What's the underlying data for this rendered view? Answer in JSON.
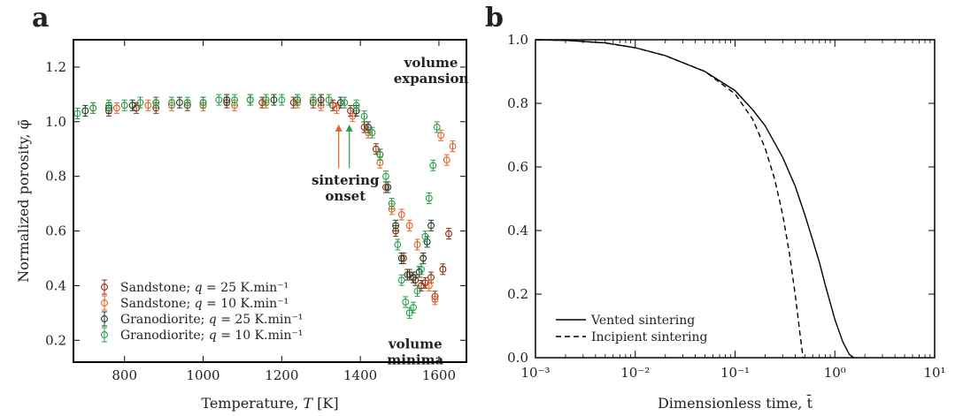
{
  "figure": {
    "panel_a_letter": "a",
    "panel_b_letter": "b"
  },
  "colors": {
    "sandstone_25": "#8b2c12",
    "sandstone_10": "#e0642c",
    "granodiorite_25": "#1f3f25",
    "granodiorite_10": "#2a9d4a",
    "arrow_orange": "#e0642c",
    "arrow_green": "#2a9d4a"
  },
  "chart_data": [
    {
      "type": "scatter",
      "xlabel_prefix": "Temperature, ",
      "xlabel_var": "T",
      "xlabel_suffix": " [K]",
      "ylabel": "Normalized porosity, φ̄",
      "xlim": [
        670,
        1670
      ],
      "ylim": [
        0.12,
        1.3
      ],
      "xticks": [
        800,
        1000,
        1200,
        1400,
        1600
      ],
      "xtick_labels": [
        "800",
        "1000",
        "1200",
        "1400",
        "1600"
      ],
      "yticks": [
        0.2,
        0.4,
        0.6,
        0.8,
        1.0,
        1.2
      ],
      "ytick_labels": [
        "0.2",
        "0.4",
        "0.6",
        "0.8",
        "1.0",
        "1.2"
      ],
      "annotations": [
        {
          "id": "expansion",
          "lines": [
            "volume",
            "expansion"
          ],
          "x": 1580,
          "y": 1.2
        },
        {
          "id": "onset",
          "lines": [
            "sintering",
            "onset"
          ],
          "x": 1362,
          "y": 0.77
        },
        {
          "id": "minima",
          "lines": [
            "volume",
            "minima"
          ],
          "x": 1540,
          "y": 0.17
        }
      ],
      "arrows": [
        {
          "color_key": "arrow_orange",
          "x": 1345,
          "y_from": 0.83,
          "y_to": 0.99
        },
        {
          "color_key": "arrow_green",
          "x": 1372,
          "y_from": 0.83,
          "y_to": 0.99
        }
      ],
      "legend_location": "lower-left",
      "series": [
        {
          "name": "Sandstone; q = 25 K.min⁻¹",
          "legend_prefix": "Sandstone; ",
          "color_key": "sandstone_25",
          "x": [
            760,
            830,
            880,
            960,
            1060,
            1150,
            1230,
            1280,
            1330,
            1375,
            1410,
            1440,
            1465,
            1490,
            1510,
            1525,
            1540,
            1555,
            1565,
            1580,
            1590,
            1610,
            1625
          ],
          "y": [
            1.04,
            1.05,
            1.05,
            1.06,
            1.07,
            1.07,
            1.07,
            1.07,
            1.06,
            1.04,
            0.98,
            0.9,
            0.76,
            0.6,
            0.5,
            0.44,
            0.42,
            0.4,
            0.41,
            0.43,
            0.36,
            0.46,
            0.59
          ]
        },
        {
          "name": "Sandstone; q = 10 K.min⁻¹",
          "legend_prefix": "Sandstone; ",
          "color_key": "sandstone_10",
          "x": [
            720,
            780,
            860,
            920,
            1000,
            1080,
            1160,
            1240,
            1300,
            1340,
            1380,
            1420,
            1450,
            1480,
            1505,
            1525,
            1545,
            1560,
            1575,
            1590,
            1605,
            1620,
            1635
          ],
          "y": [
            1.05,
            1.05,
            1.06,
            1.06,
            1.06,
            1.06,
            1.07,
            1.07,
            1.06,
            1.05,
            1.02,
            0.96,
            0.85,
            0.68,
            0.66,
            0.62,
            0.55,
            0.5,
            0.4,
            0.35,
            0.95,
            0.86,
            0.91
          ]
        },
        {
          "name": "Granodiorite; q = 25 K.min⁻¹",
          "legend_prefix": "Granodiorite; ",
          "color_key": "granodiorite_25",
          "x": [
            700,
            760,
            820,
            880,
            940,
            1000,
            1060,
            1120,
            1180,
            1240,
            1300,
            1350,
            1390,
            1420,
            1450,
            1470,
            1490,
            1505,
            1520,
            1535,
            1550,
            1560,
            1570,
            1580
          ],
          "y": [
            1.04,
            1.05,
            1.06,
            1.07,
            1.07,
            1.07,
            1.08,
            1.08,
            1.08,
            1.08,
            1.08,
            1.07,
            1.04,
            0.98,
            0.88,
            0.76,
            0.62,
            0.5,
            0.44,
            0.43,
            0.45,
            0.5,
            0.56,
            0.62
          ]
        },
        {
          "name": "Granodiorite; q = 10 K.min⁻¹",
          "legend_prefix": "Granodiorite; ",
          "color_key": "granodiorite_10",
          "x": [
            680,
            720,
            760,
            800,
            840,
            880,
            920,
            960,
            1000,
            1040,
            1080,
            1120,
            1160,
            1200,
            1240,
            1280,
            1320,
            1360,
            1390,
            1410,
            1430,
            1450,
            1465,
            1480,
            1495,
            1505,
            1515,
            1525,
            1535,
            1545,
            1555,
            1565,
            1575,
            1585,
            1595
          ],
          "y": [
            1.03,
            1.05,
            1.06,
            1.06,
            1.07,
            1.07,
            1.07,
            1.07,
            1.07,
            1.08,
            1.08,
            1.08,
            1.08,
            1.08,
            1.08,
            1.08,
            1.08,
            1.07,
            1.06,
            1.02,
            0.96,
            0.88,
            0.8,
            0.7,
            0.55,
            0.42,
            0.34,
            0.3,
            0.32,
            0.38,
            0.46,
            0.58,
            0.72,
            0.84,
            0.98
          ]
        }
      ]
    },
    {
      "type": "line",
      "xlabel": "Dimensionless time, t̄",
      "ylabel": "",
      "xscale": "log",
      "xlim": [
        0.001,
        10
      ],
      "ylim": [
        0.0,
        1.0
      ],
      "xtick_labels": [
        "10⁻³",
        "10⁻²",
        "10⁻¹",
        "10⁰",
        "10¹"
      ],
      "xticks": [
        0.001,
        0.01,
        0.1,
        1,
        10
      ],
      "yticks": [
        0.0,
        0.2,
        0.4,
        0.6,
        0.8,
        1.0
      ],
      "ytick_labels": [
        "0.0",
        "0.2",
        "0.4",
        "0.6",
        "0.8",
        "1.0"
      ],
      "legend_location": "lower-left",
      "series": [
        {
          "name": "Vented sintering",
          "style": "solid",
          "x": [
            0.001,
            0.002,
            0.005,
            0.01,
            0.02,
            0.05,
            0.1,
            0.15,
            0.2,
            0.3,
            0.4,
            0.5,
            0.6,
            0.7,
            0.8,
            1.0,
            1.2,
            1.4,
            1.55
          ],
          "y": [
            1.0,
            0.998,
            0.99,
            0.975,
            0.95,
            0.9,
            0.84,
            0.78,
            0.73,
            0.63,
            0.54,
            0.45,
            0.37,
            0.3,
            0.23,
            0.12,
            0.05,
            0.01,
            0.0
          ]
        },
        {
          "name": "Incipient sintering",
          "style": "dashed",
          "x": [
            0.001,
            0.002,
            0.005,
            0.01,
            0.02,
            0.05,
            0.1,
            0.15,
            0.2,
            0.25,
            0.3,
            0.35,
            0.4,
            0.45,
            0.48
          ],
          "y": [
            1.0,
            0.998,
            0.99,
            0.975,
            0.95,
            0.9,
            0.83,
            0.75,
            0.66,
            0.56,
            0.45,
            0.33,
            0.2,
            0.07,
            0.0
          ]
        }
      ]
    }
  ]
}
